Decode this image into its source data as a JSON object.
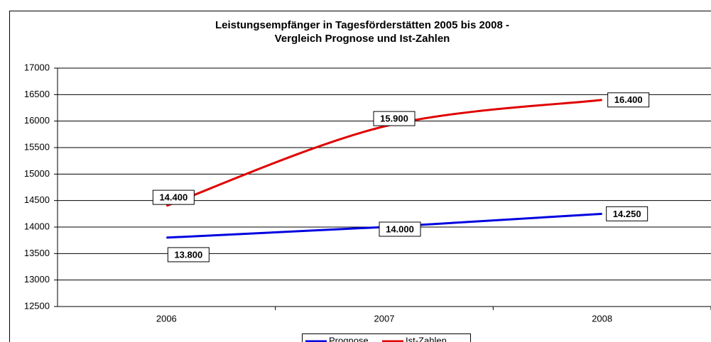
{
  "chart_data": {
    "type": "line",
    "title": "Leistungsempfänger in Tagesförderstätten 2005 bis 2008 -",
    "subtitle": "Vergleich Prognose und Ist-Zahlen",
    "categories": [
      "2006",
      "2007",
      "2008"
    ],
    "series": [
      {
        "name": "Prognose",
        "color": "#0000e0",
        "values": [
          13800,
          14000,
          14250
        ],
        "value_labels": [
          "13.800",
          "14.000",
          "14.250"
        ]
      },
      {
        "name": "Ist-Zahlen",
        "color": "#e00000",
        "values": [
          14400,
          15900,
          16400
        ],
        "value_labels": [
          "14.400",
          "15.900",
          "16.400"
        ],
        "smooth": true
      }
    ],
    "ylim": [
      12500,
      17000
    ],
    "yticks": [
      12500,
      13000,
      13500,
      14000,
      14500,
      15000,
      15500,
      16000,
      16500,
      17000
    ],
    "grid": true
  }
}
